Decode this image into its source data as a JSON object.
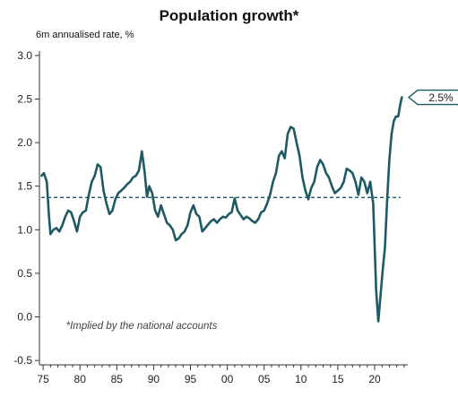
{
  "chart_data": {
    "type": "line",
    "title": "Population growth*",
    "subtitle": "6m annualised rate, %",
    "note": "*Implied by the national accounts",
    "callout": "2.5%",
    "xlim": [
      1974.5,
      2024.5
    ],
    "ylim": [
      -0.55,
      3.05
    ],
    "x_ticks": [
      {
        "value": 1975,
        "label": "75"
      },
      {
        "value": 1980,
        "label": "80"
      },
      {
        "value": 1985,
        "label": "85"
      },
      {
        "value": 1990,
        "label": "90"
      },
      {
        "value": 1995,
        "label": "95"
      },
      {
        "value": 2000,
        "label": "00"
      },
      {
        "value": 2005,
        "label": "05"
      },
      {
        "value": 2010,
        "label": "10"
      },
      {
        "value": 2015,
        "label": "15"
      },
      {
        "value": 2020,
        "label": "20"
      }
    ],
    "y_ticks": [
      {
        "value": 3.0,
        "label": "3.0"
      },
      {
        "value": 2.5,
        "label": "2.5"
      },
      {
        "value": 2.0,
        "label": "2.0"
      },
      {
        "value": 1.5,
        "label": "1.5"
      },
      {
        "value": 1.0,
        "label": "1.0"
      },
      {
        "value": 0.5,
        "label": "0.5"
      },
      {
        "value": 0.0,
        "label": "0.0"
      },
      {
        "value": -0.5,
        "label": "-0.5"
      }
    ],
    "average_line": 1.37,
    "colors": {
      "series": "#1f5a64",
      "axis": "#333333",
      "callout_border": "#1f5a64"
    },
    "series": [
      {
        "x": [
          1974.8,
          1975.1,
          1975.5,
          1975.8,
          1976.0,
          1976.4,
          1976.8,
          1977.2,
          1977.6,
          1978.0,
          1978.4,
          1978.8,
          1979.2,
          1979.6,
          1980.0,
          1980.4,
          1980.8,
          1981.2,
          1981.6,
          1982.0,
          1982.4,
          1982.8,
          1983.2,
          1983.6,
          1984.0,
          1984.4,
          1984.8,
          1985.2,
          1985.6,
          1986.0,
          1986.4,
          1986.8,
          1987.2,
          1987.6,
          1988.0,
          1988.4,
          1988.8,
          1989.1,
          1989.4,
          1989.8,
          1990.2,
          1990.6,
          1991.0,
          1991.4,
          1991.8,
          1992.2,
          1992.6,
          1993.0,
          1993.4,
          1993.8,
          1994.2,
          1994.6,
          1995.0,
          1995.4,
          1995.8,
          1996.2,
          1996.6,
          1997.0,
          1997.4,
          1997.8,
          1998.2,
          1998.6,
          1999.0,
          1999.4,
          1999.8,
          2000.2,
          2000.6,
          2001.0,
          2001.4,
          2001.8,
          2002.2,
          2002.6,
          2003.0,
          2003.4,
          2003.8,
          2004.2,
          2004.6,
          2005.0,
          2005.4,
          2005.8,
          2006.2,
          2006.6,
          2007.0,
          2007.4,
          2007.8,
          2008.2,
          2008.6,
          2009.0,
          2009.4,
          2009.8,
          2010.2,
          2010.6,
          2011.0,
          2011.4,
          2011.8,
          2012.2,
          2012.6,
          2013.0,
          2013.4,
          2013.8,
          2014.2,
          2014.6,
          2015.0,
          2015.4,
          2015.8,
          2016.2,
          2016.6,
          2017.0,
          2017.4,
          2017.8,
          2018.2,
          2018.6,
          2019.0,
          2019.4,
          2019.8,
          2020.2,
          2020.5,
          2020.8,
          2021.1,
          2021.4,
          2021.7,
          2022.0,
          2022.3,
          2022.6,
          2022.9,
          2023.2,
          2023.5,
          2023.7
        ],
        "values": [
          1.62,
          1.65,
          1.55,
          1.15,
          0.95,
          1.0,
          1.02,
          0.98,
          1.05,
          1.15,
          1.22,
          1.2,
          1.1,
          0.98,
          1.15,
          1.2,
          1.22,
          1.4,
          1.55,
          1.62,
          1.75,
          1.72,
          1.45,
          1.3,
          1.18,
          1.22,
          1.35,
          1.42,
          1.45,
          1.48,
          1.52,
          1.55,
          1.6,
          1.62,
          1.68,
          1.9,
          1.65,
          1.38,
          1.5,
          1.42,
          1.22,
          1.15,
          1.28,
          1.18,
          1.08,
          1.05,
          1.0,
          0.88,
          0.9,
          0.95,
          0.98,
          1.05,
          1.2,
          1.28,
          1.18,
          1.15,
          0.98,
          1.02,
          1.06,
          1.1,
          1.12,
          1.08,
          1.12,
          1.15,
          1.14,
          1.18,
          1.2,
          1.36,
          1.22,
          1.17,
          1.12,
          1.15,
          1.13,
          1.1,
          1.08,
          1.12,
          1.2,
          1.22,
          1.3,
          1.4,
          1.55,
          1.65,
          1.85,
          1.9,
          1.82,
          2.1,
          2.18,
          2.16,
          2.0,
          1.85,
          1.6,
          1.45,
          1.35,
          1.48,
          1.55,
          1.72,
          1.8,
          1.75,
          1.65,
          1.6,
          1.5,
          1.42,
          1.45,
          1.48,
          1.55,
          1.7,
          1.68,
          1.65,
          1.55,
          1.4,
          1.6,
          1.55,
          1.42,
          1.55,
          1.3,
          0.3,
          -0.05,
          0.25,
          0.55,
          0.8,
          1.35,
          1.8,
          2.1,
          2.25,
          2.3,
          2.3,
          2.45,
          2.52
        ]
      }
    ]
  }
}
